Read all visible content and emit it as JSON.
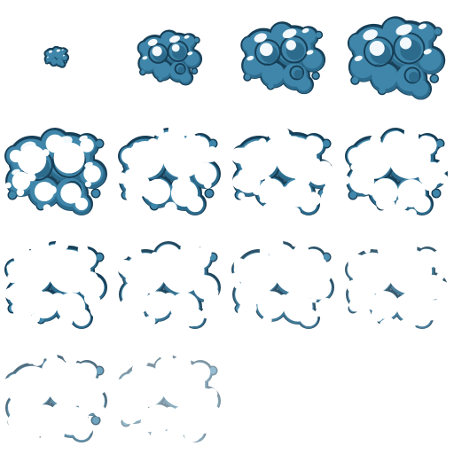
{
  "sprite_sheet": {
    "grid": {
      "columns": 4,
      "rows": 4
    },
    "frame_count": 14,
    "colors": {
      "background": "#ffffff",
      "fill": "#3f86aa",
      "fill_deep": "#2d6b8c",
      "outline": "#173f57",
      "highlight": "#f2f8fb"
    },
    "frames": [
      {
        "index": 1,
        "opacity": 1.0,
        "dissolve": 0.0,
        "scale": 0.22
      },
      {
        "index": 2,
        "opacity": 1.0,
        "dissolve": 0.0,
        "scale": 0.62
      },
      {
        "index": 3,
        "opacity": 1.0,
        "dissolve": 0.0,
        "scale": 0.82
      },
      {
        "index": 4,
        "opacity": 1.0,
        "dissolve": 0.0,
        "scale": 0.95
      },
      {
        "index": 5,
        "opacity": 1.0,
        "dissolve": 0.25,
        "scale": 1.0
      },
      {
        "index": 6,
        "opacity": 1.0,
        "dissolve": 0.72,
        "scale": 1.0
      },
      {
        "index": 7,
        "opacity": 1.0,
        "dissolve": 0.78,
        "scale": 1.0
      },
      {
        "index": 8,
        "opacity": 1.0,
        "dissolve": 0.83,
        "scale": 1.0
      },
      {
        "index": 9,
        "opacity": 1.0,
        "dissolve": 0.87,
        "scale": 1.0
      },
      {
        "index": 10,
        "opacity": 0.95,
        "dissolve": 0.9,
        "scale": 1.0
      },
      {
        "index": 11,
        "opacity": 0.9,
        "dissolve": 0.93,
        "scale": 1.0
      },
      {
        "index": 12,
        "opacity": 0.85,
        "dissolve": 0.95,
        "scale": 1.0
      },
      {
        "index": 13,
        "opacity": 0.75,
        "dissolve": 0.97,
        "scale": 1.0
      },
      {
        "index": 14,
        "opacity": 0.55,
        "dissolve": 0.99,
        "scale": 1.0
      }
    ]
  }
}
